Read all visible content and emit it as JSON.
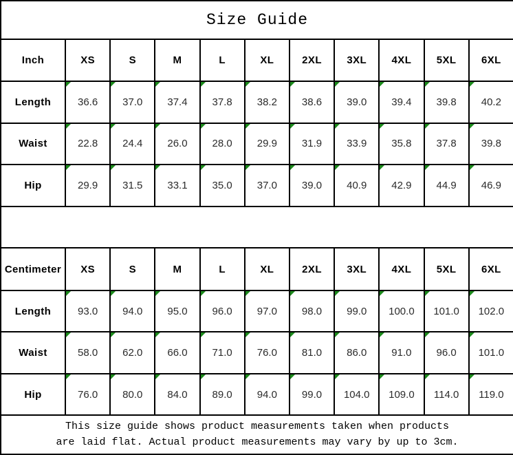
{
  "chart_data": {
    "type": "table",
    "title": "Size Guide",
    "size_columns": [
      "XS",
      "S",
      "M",
      "L",
      "XL",
      "2XL",
      "3XL",
      "4XL",
      "5XL",
      "6XL"
    ],
    "sections": [
      {
        "unit_label": "Inch",
        "rows": [
          {
            "label": "Length",
            "values": [
              "36.6",
              "37.0",
              "37.4",
              "37.8",
              "38.2",
              "38.6",
              "39.0",
              "39.4",
              "39.8",
              "40.2"
            ]
          },
          {
            "label": "Waist",
            "values": [
              "22.8",
              "24.4",
              "26.0",
              "28.0",
              "29.9",
              "31.9",
              "33.9",
              "35.8",
              "37.8",
              "39.8"
            ]
          },
          {
            "label": "Hip",
            "values": [
              "29.9",
              "31.5",
              "33.1",
              "35.0",
              "37.0",
              "39.0",
              "40.9",
              "42.9",
              "44.9",
              "46.9"
            ]
          }
        ]
      },
      {
        "unit_label": "Centimeter",
        "rows": [
          {
            "label": "Length",
            "values": [
              "93.0",
              "94.0",
              "95.0",
              "96.0",
              "97.0",
              "98.0",
              "99.0",
              "100.0",
              "101.0",
              "102.0"
            ]
          },
          {
            "label": "Waist",
            "values": [
              "58.0",
              "62.0",
              "66.0",
              "71.0",
              "76.0",
              "81.0",
              "86.0",
              "91.0",
              "96.0",
              "101.0"
            ]
          },
          {
            "label": "Hip",
            "values": [
              "76.0",
              "80.0",
              "84.0",
              "89.0",
              "94.0",
              "99.0",
              "104.0",
              "109.0",
              "114.0",
              "119.0"
            ]
          }
        ]
      }
    ],
    "footnote_lines": [
      "This size guide shows product measurements taken when products",
      "are laid flat. Actual product measurements may vary by up to 3cm."
    ],
    "layout": {
      "grid": "on",
      "cell_flag_corner": "top-left"
    }
  },
  "colors": {
    "flag_green": "#1c8a1c",
    "border": "#000000",
    "background": "#ffffff",
    "text": "#000000"
  }
}
